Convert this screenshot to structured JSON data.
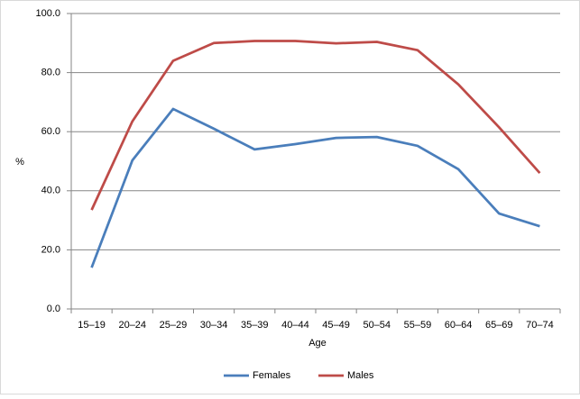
{
  "chart_data": {
    "type": "line",
    "categories": [
      "15–19",
      "20–24",
      "25–29",
      "30–34",
      "35–39",
      "40–44",
      "45–49",
      "50–54",
      "55–59",
      "60–64",
      "65–69",
      "70–74"
    ],
    "series": [
      {
        "name": "Females",
        "color": "#4a7ebb",
        "values": [
          14.0,
          50.3,
          67.7,
          61.0,
          54.0,
          55.8,
          57.9,
          58.2,
          55.2,
          47.3,
          32.3,
          28.0
        ]
      },
      {
        "name": "Males",
        "color": "#be4b48",
        "values": [
          33.5,
          63.5,
          84.0,
          90.0,
          90.7,
          90.7,
          89.9,
          90.4,
          87.6,
          76.0,
          61.5,
          46.0
        ]
      }
    ],
    "ylim": [
      0,
      100
    ],
    "yticks": [
      {
        "value": 0,
        "label": "0.0"
      },
      {
        "value": 20,
        "label": "20.0"
      },
      {
        "value": 40,
        "label": "40.0"
      },
      {
        "value": 60,
        "label": "60.0"
      },
      {
        "value": 80,
        "label": "80.0"
      },
      {
        "value": 100,
        "label": "100.0"
      }
    ],
    "y_label": "%",
    "x_label": "Age",
    "grid": true,
    "legend": "bottom"
  }
}
